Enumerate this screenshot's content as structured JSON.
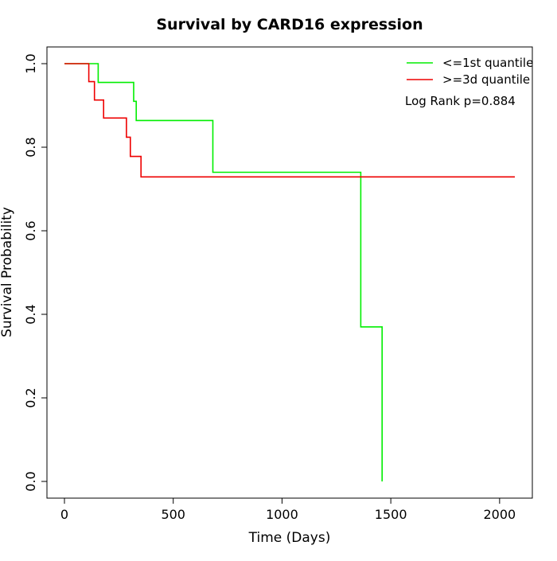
{
  "chart_data": {
    "type": "line",
    "title": "Survival by CARD16 expression",
    "xlabel": "Time (Days)",
    "ylabel": "Survival Probability",
    "xlim": [
      0,
      2070
    ],
    "ylim": [
      0,
      1
    ],
    "x_ticks": [
      0,
      500,
      1000,
      1500,
      2000
    ],
    "y_ticks": [
      0.0,
      0.2,
      0.4,
      0.6,
      0.8,
      1.0
    ],
    "x_tick_labels": [
      "0",
      "500",
      "1000",
      "1500",
      "2000"
    ],
    "y_tick_labels": [
      "0.0",
      "0.2",
      "0.4",
      "0.6",
      "0.8",
      "1.0"
    ],
    "legend_position": "top-right",
    "series": [
      {
        "name": "<=1st quantile",
        "color": "#00ee00",
        "step_points": [
          [
            0,
            1.0
          ],
          [
            155,
            1.0
          ],
          [
            155,
            0.955
          ],
          [
            318,
            0.955
          ],
          [
            318,
            0.91
          ],
          [
            330,
            0.91
          ],
          [
            330,
            0.864
          ],
          [
            682,
            0.864
          ],
          [
            682,
            0.74
          ],
          [
            1362,
            0.74
          ],
          [
            1362,
            0.37
          ],
          [
            1460,
            0.37
          ],
          [
            1460,
            0.0
          ]
        ]
      },
      {
        "name": ">=3d quantile",
        "color": "#ee0000",
        "step_points": [
          [
            0,
            1.0
          ],
          [
            112,
            1.0
          ],
          [
            112,
            0.957
          ],
          [
            138,
            0.957
          ],
          [
            138,
            0.913
          ],
          [
            180,
            0.913
          ],
          [
            180,
            0.87
          ],
          [
            285,
            0.87
          ],
          [
            285,
            0.824
          ],
          [
            303,
            0.824
          ],
          [
            303,
            0.778
          ],
          [
            352,
            0.778
          ],
          [
            352,
            0.729
          ],
          [
            2070,
            0.729
          ]
        ]
      }
    ],
    "annotations": [
      "Log Rank p=0.884"
    ]
  }
}
